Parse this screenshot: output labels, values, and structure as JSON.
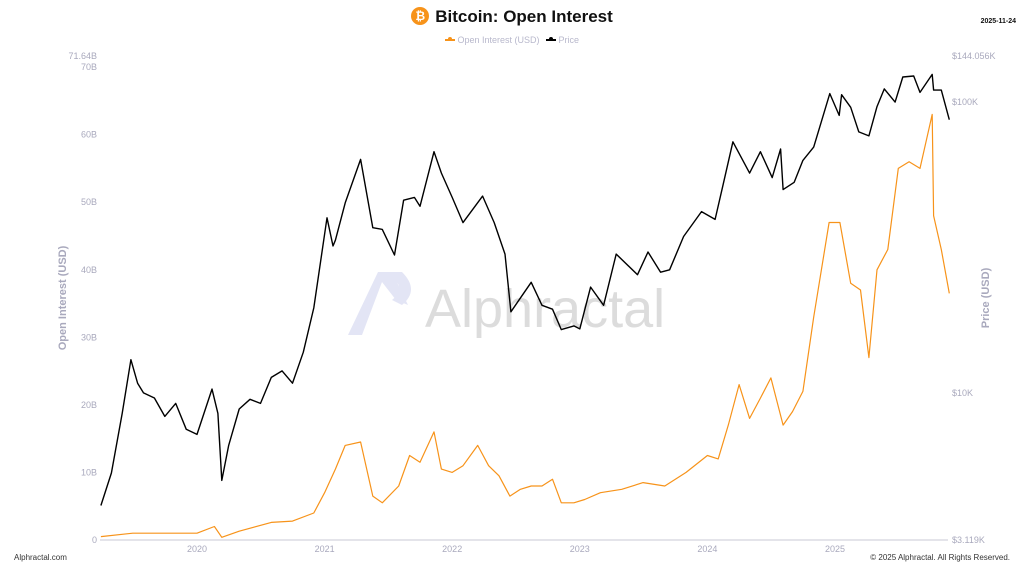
{
  "header": {
    "title": "Bitcoin: Open Interest",
    "coin_icon": "bitcoin-icon",
    "coin_symbol": "₿",
    "date": "2025-11-24"
  },
  "footer": {
    "left": "Alphractal.com",
    "right": "© 2025 Alphractal. All Rights Reserved."
  },
  "watermark": "Alphractal",
  "chart_data": {
    "type": "line",
    "title": "Bitcoin: Open Interest",
    "legend_position": "top",
    "grid": false,
    "x_ticks": [
      "2020",
      "2021",
      "2022",
      "2023",
      "2024",
      "2025"
    ],
    "xlim": [
      "2019-04-01",
      "2025-11-24"
    ],
    "y_left": {
      "label": "Open Interest (USD)",
      "ticks": [
        "0",
        "10B",
        "20B",
        "30B",
        "40B",
        "50B",
        "60B",
        "70B"
      ],
      "max_label": "71.64B",
      "ylim": [
        0,
        71.64
      ],
      "unit": "B USD"
    },
    "y_right": {
      "label": "Price (USD)",
      "scale": "log",
      "ticks": [
        "$3.119K",
        "$10K",
        "$100K",
        "$144.056K"
      ],
      "ylim": [
        3119,
        144056
      ]
    },
    "series": [
      {
        "name": "Open Interest (USD)",
        "axis": "left",
        "color": "#f7931a",
        "points": [
          [
            "2019-04-01",
            0.5
          ],
          [
            "2019-07-01",
            1.0
          ],
          [
            "2019-10-01",
            1.0
          ],
          [
            "2020-01-01",
            1.0
          ],
          [
            "2020-02-20",
            2.0
          ],
          [
            "2020-03-12",
            0.4
          ],
          [
            "2020-05-01",
            1.3
          ],
          [
            "2020-08-01",
            2.6
          ],
          [
            "2020-10-01",
            2.8
          ],
          [
            "2020-12-01",
            4.0
          ],
          [
            "2021-01-01",
            7.0
          ],
          [
            "2021-02-01",
            10.5
          ],
          [
            "2021-03-01",
            14.0
          ],
          [
            "2021-04-14",
            14.5
          ],
          [
            "2021-05-19",
            6.5
          ],
          [
            "2021-06-15",
            5.5
          ],
          [
            "2021-08-01",
            8.0
          ],
          [
            "2021-09-01",
            12.5
          ],
          [
            "2021-10-01",
            11.5
          ],
          [
            "2021-11-10",
            16.0
          ],
          [
            "2021-12-01",
            10.5
          ],
          [
            "2022-01-01",
            10.0
          ],
          [
            "2022-02-01",
            11.0
          ],
          [
            "2022-03-15",
            14.0
          ],
          [
            "2022-04-15",
            11.0
          ],
          [
            "2022-05-15",
            9.5
          ],
          [
            "2022-06-15",
            6.5
          ],
          [
            "2022-07-15",
            7.5
          ],
          [
            "2022-08-15",
            8.0
          ],
          [
            "2022-09-15",
            8.0
          ],
          [
            "2022-10-15",
            9.0
          ],
          [
            "2022-11-09",
            5.5
          ],
          [
            "2022-12-15",
            5.5
          ],
          [
            "2023-01-15",
            6.0
          ],
          [
            "2023-03-01",
            7.0
          ],
          [
            "2023-05-01",
            7.5
          ],
          [
            "2023-07-01",
            8.5
          ],
          [
            "2023-09-01",
            8.0
          ],
          [
            "2023-11-01",
            10.0
          ],
          [
            "2024-01-01",
            12.5
          ],
          [
            "2024-02-01",
            12.0
          ],
          [
            "2024-03-01",
            17.0
          ],
          [
            "2024-04-01",
            23.0
          ],
          [
            "2024-05-01",
            18.0
          ],
          [
            "2024-06-01",
            21.0
          ],
          [
            "2024-07-01",
            24.0
          ],
          [
            "2024-08-05",
            17.0
          ],
          [
            "2024-09-01",
            19.0
          ],
          [
            "2024-10-01",
            22.0
          ],
          [
            "2024-11-01",
            33.0
          ],
          [
            "2024-12-15",
            47.0
          ],
          [
            "2025-01-15",
            47.0
          ],
          [
            "2025-02-15",
            38.0
          ],
          [
            "2025-03-15",
            37.0
          ],
          [
            "2025-04-08",
            27.0
          ],
          [
            "2025-05-01",
            40.0
          ],
          [
            "2025-06-01",
            43.0
          ],
          [
            "2025-07-01",
            55.0
          ],
          [
            "2025-08-01",
            56.0
          ],
          [
            "2025-09-01",
            55.0
          ],
          [
            "2025-10-06",
            63.0
          ],
          [
            "2025-10-10",
            48.0
          ],
          [
            "2025-11-01",
            43.0
          ],
          [
            "2025-11-24",
            36.5
          ]
        ]
      },
      {
        "name": "Price",
        "axis": "right",
        "color": "#000000",
        "points": [
          [
            "2019-04-01",
            4100
          ],
          [
            "2019-05-01",
            5300
          ],
          [
            "2019-06-01",
            8500
          ],
          [
            "2019-06-26",
            13000
          ],
          [
            "2019-07-15",
            10800
          ],
          [
            "2019-08-01",
            10000
          ],
          [
            "2019-09-01",
            9600
          ],
          [
            "2019-10-01",
            8300
          ],
          [
            "2019-11-01",
            9200
          ],
          [
            "2019-12-01",
            7500
          ],
          [
            "2020-01-01",
            7200
          ],
          [
            "2020-02-13",
            10300
          ],
          [
            "2020-03-01",
            8500
          ],
          [
            "2020-03-12",
            5000
          ],
          [
            "2020-04-01",
            6600
          ],
          [
            "2020-05-01",
            8800
          ],
          [
            "2020-06-01",
            9500
          ],
          [
            "2020-07-01",
            9200
          ],
          [
            "2020-08-01",
            11300
          ],
          [
            "2020-09-01",
            11900
          ],
          [
            "2020-10-01",
            10800
          ],
          [
            "2020-11-01",
            13800
          ],
          [
            "2020-12-01",
            19600
          ],
          [
            "2021-01-08",
            40000
          ],
          [
            "2021-01-25",
            32000
          ],
          [
            "2021-02-01",
            33500
          ],
          [
            "2021-03-01",
            45000
          ],
          [
            "2021-04-14",
            63500
          ],
          [
            "2021-05-19",
            37000
          ],
          [
            "2021-06-15",
            36500
          ],
          [
            "2021-07-20",
            29800
          ],
          [
            "2021-08-15",
            46000
          ],
          [
            "2021-09-15",
            47000
          ],
          [
            "2021-10-01",
            43800
          ],
          [
            "2021-11-10",
            67500
          ],
          [
            "2021-12-01",
            57000
          ],
          [
            "2022-01-01",
            47000
          ],
          [
            "2022-02-01",
            38500
          ],
          [
            "2022-03-29",
            47500
          ],
          [
            "2022-05-01",
            38500
          ],
          [
            "2022-06-01",
            30000
          ],
          [
            "2022-06-18",
            19000
          ],
          [
            "2022-08-15",
            24000
          ],
          [
            "2022-09-15",
            20000
          ],
          [
            "2022-10-15",
            19400
          ],
          [
            "2022-11-09",
            16500
          ],
          [
            "2022-12-15",
            17000
          ],
          [
            "2023-01-01",
            16600
          ],
          [
            "2023-02-01",
            23100
          ],
          [
            "2023-03-10",
            20000
          ],
          [
            "2023-04-15",
            30000
          ],
          [
            "2023-06-15",
            25500
          ],
          [
            "2023-07-15",
            30500
          ],
          [
            "2023-08-20",
            26000
          ],
          [
            "2023-09-15",
            26500
          ],
          [
            "2023-10-25",
            34500
          ],
          [
            "2023-12-15",
            42000
          ],
          [
            "2024-01-23",
            39500
          ],
          [
            "2024-02-15",
            52000
          ],
          [
            "2024-03-14",
            73000
          ],
          [
            "2024-05-01",
            57000
          ],
          [
            "2024-06-01",
            67500
          ],
          [
            "2024-07-05",
            55000
          ],
          [
            "2024-07-29",
            69000
          ],
          [
            "2024-08-05",
            50000
          ],
          [
            "2024-09-06",
            53000
          ],
          [
            "2024-10-01",
            63000
          ],
          [
            "2024-11-01",
            70000
          ],
          [
            "2024-12-17",
            107000
          ],
          [
            "2025-01-13",
            90000
          ],
          [
            "2025-01-20",
            106000
          ],
          [
            "2025-02-15",
            96000
          ],
          [
            "2025-03-10",
            79000
          ],
          [
            "2025-04-08",
            76500
          ],
          [
            "2025-05-01",
            96500
          ],
          [
            "2025-05-22",
            111000
          ],
          [
            "2025-06-22",
            100000
          ],
          [
            "2025-07-14",
            122000
          ],
          [
            "2025-08-14",
            123000
          ],
          [
            "2025-09-01",
            108000
          ],
          [
            "2025-10-06",
            124500
          ],
          [
            "2025-10-10",
            110000
          ],
          [
            "2025-11-01",
            110000
          ],
          [
            "2025-11-24",
            87000
          ]
        ]
      }
    ]
  }
}
